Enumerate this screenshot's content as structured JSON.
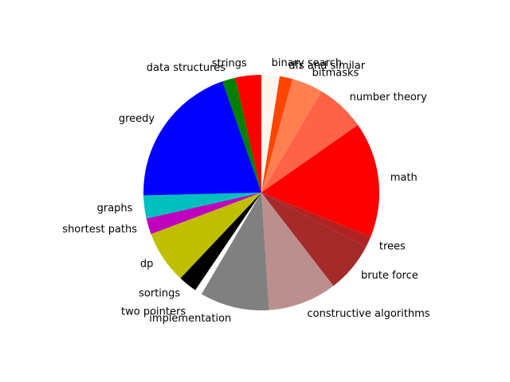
{
  "chart_data": {
    "type": "pie",
    "title": "",
    "start_angle_deg": 90,
    "direction": "clockwise",
    "slices": [
      {
        "label": "binary search",
        "value": 2.5,
        "color": "#fff5ee",
        "explode": false
      },
      {
        "label": "dfs and similar",
        "value": 1.8,
        "color": "#ff4500",
        "explode": false
      },
      {
        "label": "bitmasks",
        "value": 4.3,
        "color": "#ff7f50",
        "explode": false
      },
      {
        "label": "number theory",
        "value": 6.8,
        "color": "#ff6347",
        "explode": false
      },
      {
        "label": "math",
        "value": 16.0,
        "color": "#ff0000",
        "explode": false
      },
      {
        "label": "trees",
        "value": 1.5,
        "color": "#b22222",
        "explode": false
      },
      {
        "label": "brute force",
        "value": 7.0,
        "color": "#a52a2a",
        "explode": false
      },
      {
        "label": "constructive algorithms",
        "value": 9.5,
        "color": "#bc8f8f",
        "explode": false
      },
      {
        "label": "implementation",
        "value": 9.6,
        "color": "#808080",
        "explode": false
      },
      {
        "label": "two pointers",
        "value": 1.0,
        "color": "#ffffff",
        "explode": true
      },
      {
        "label": "sortings",
        "value": 2.6,
        "color": "#000000",
        "explode": false
      },
      {
        "label": "dp",
        "value": 7.3,
        "color": "#bfbf00",
        "explode": false
      },
      {
        "label": "shortest paths",
        "value": 2.2,
        "color": "#bf00bf",
        "explode": false
      },
      {
        "label": "graphs",
        "value": 3.2,
        "color": "#00bfbf",
        "explode": false
      },
      {
        "label": "greedy",
        "value": 20.2,
        "color": "#0000ff",
        "explode": false
      },
      {
        "label": "data structures",
        "value": 1.8,
        "color": "#008000",
        "explode": false
      },
      {
        "label": "strings",
        "value": 3.6,
        "color": "#ff0000",
        "explode": false
      }
    ]
  }
}
